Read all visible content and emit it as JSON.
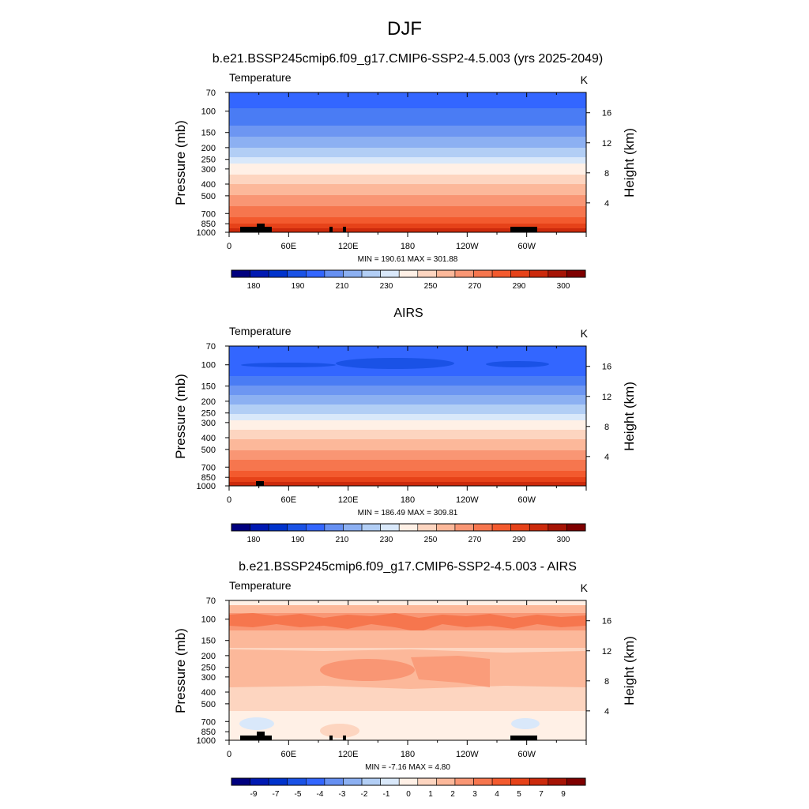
{
  "figure": {
    "title": "DJF"
  },
  "chart_data": [
    {
      "type": "heatmap",
      "title": "b.e21.BSSP245cmip6.f09_g17.CMIP6-SSP2-4.5.003 (yrs 2025-2049)",
      "left_label": "Temperature",
      "units": "K",
      "ylabel": "Pressure (mb)",
      "ylabel_right": "Height (km)",
      "x_ticks": [
        "0",
        "60E",
        "120E",
        "180",
        "120W",
        "60W"
      ],
      "y_ticks": [
        "70",
        "100",
        "150",
        "200",
        "250",
        "300",
        "400",
        "500",
        "700",
        "850",
        "1000"
      ],
      "height_ticks": [
        "4",
        "8",
        "12",
        "16"
      ],
      "stats": "MIN = 190.61  MAX = 301.88",
      "min": 190.61,
      "max": 301.88,
      "colorbar_labels": [
        "180",
        "190",
        "210",
        "230",
        "250",
        "270",
        "290",
        "300"
      ]
    },
    {
      "type": "heatmap",
      "title": "AIRS",
      "left_label": "Temperature",
      "units": "K",
      "ylabel": "Pressure (mb)",
      "ylabel_right": "Height (km)",
      "x_ticks": [
        "0",
        "60E",
        "120E",
        "180",
        "120W",
        "60W"
      ],
      "y_ticks": [
        "70",
        "100",
        "150",
        "200",
        "250",
        "300",
        "400",
        "500",
        "700",
        "850",
        "1000"
      ],
      "height_ticks": [
        "4",
        "8",
        "12",
        "16"
      ],
      "stats": "MIN = 186.49  MAX = 309.81",
      "min": 186.49,
      "max": 309.81,
      "colorbar_labels": [
        "180",
        "190",
        "210",
        "230",
        "250",
        "270",
        "290",
        "300"
      ]
    },
    {
      "type": "heatmap",
      "title": "b.e21.BSSP245cmip6.f09_g17.CMIP6-SSP2-4.5.003 - AIRS",
      "left_label": "Temperature",
      "units": "K",
      "ylabel": "Pressure (mb)",
      "ylabel_right": "Height (km)",
      "x_ticks": [
        "0",
        "60E",
        "120E",
        "180",
        "120W",
        "60W"
      ],
      "y_ticks": [
        "70",
        "100",
        "150",
        "200",
        "250",
        "300",
        "400",
        "500",
        "700",
        "850",
        "1000"
      ],
      "height_ticks": [
        "4",
        "8",
        "12",
        "16"
      ],
      "stats": "MIN =  -7.16  MAX =   4.80",
      "min": -7.16,
      "max": 4.8,
      "colorbar_labels": [
        "-9",
        "-7",
        "-5",
        "-4",
        "-3",
        "-2",
        "-1",
        "0",
        "1",
        "2",
        "3",
        "4",
        "5",
        "7",
        "9"
      ]
    }
  ],
  "colors": {
    "temperature_scale": [
      "#00007f",
      "#0019b2",
      "#0033cc",
      "#1a52e6",
      "#3366ff",
      "#6690f2",
      "#8cb0f2",
      "#b2cef5",
      "#d9e8fa",
      "#fff0e6",
      "#fdd5c0",
      "#fcb89a",
      "#f99674",
      "#f6764e",
      "#f35a2e",
      "#e64219",
      "#cc2a0c",
      "#a61405",
      "#7f0000"
    ],
    "anomaly_scale": [
      "#00007f",
      "#0019b2",
      "#0033cc",
      "#1a52e6",
      "#3366ff",
      "#6690f2",
      "#8cb0f2",
      "#b2cef5",
      "#d9e8fa",
      "#fff0e6",
      "#fdd5c0",
      "#fcb89a",
      "#f99674",
      "#f6764e",
      "#f35a2e",
      "#e64219",
      "#cc2a0c",
      "#a61405",
      "#7f0000"
    ],
    "topography": "#000000"
  }
}
